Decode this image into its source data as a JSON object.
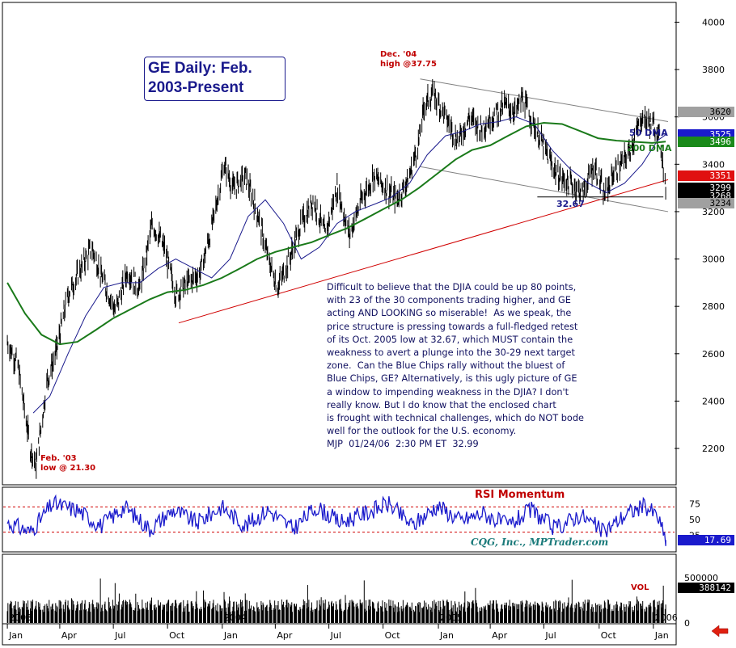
{
  "chart_data": [
    {
      "type": "line",
      "title": "GE Daily: Feb. 2003-Present",
      "ylim": [
        2050,
        4080
      ],
      "yticks": [
        2200,
        2400,
        2600,
        2800,
        3000,
        3200,
        3400,
        3600,
        3800,
        4000
      ],
      "ytick_labels": [
        "2200",
        "2400",
        "2600",
        "2800",
        "3000",
        "3200",
        "3400",
        "3600",
        "3800",
        "4000"
      ],
      "x_labels": [
        "Jan",
        "Apr",
        "Jul",
        "Oct",
        "Jan",
        "Apr",
        "Jul",
        "Oct",
        "Jan",
        "Apr",
        "Jul",
        "Oct",
        "Jan"
      ],
      "year_labels": [
        "2003",
        "2004",
        "2005",
        "2006"
      ],
      "series": [
        {
          "name": "price",
          "color": "#000000",
          "x": [
            "2003-01-02",
            "2003-01-20",
            "2003-02-10",
            "2003-02-20",
            "2003-03-10",
            "2003-03-25",
            "2003-04-15",
            "2003-05-05",
            "2003-05-25",
            "2003-06-15",
            "2003-07-05",
            "2003-07-25",
            "2003-08-15",
            "2003-09-05",
            "2003-09-25",
            "2003-10-15",
            "2003-11-05",
            "2003-11-25",
            "2003-12-15",
            "2004-01-05",
            "2004-01-20",
            "2004-02-10",
            "2004-03-01",
            "2004-03-20",
            "2004-04-05",
            "2004-04-25",
            "2004-05-15",
            "2004-06-05",
            "2004-06-25",
            "2004-07-15",
            "2004-08-05",
            "2004-08-25",
            "2004-09-15",
            "2004-10-05",
            "2004-10-25",
            "2004-11-15",
            "2004-12-01",
            "2004-12-10",
            "2004-12-25",
            "2005-01-15",
            "2005-02-05",
            "2005-02-25",
            "2005-03-15",
            "2005-04-05",
            "2005-04-25",
            "2005-05-15",
            "2005-05-25",
            "2005-06-15",
            "2005-07-05",
            "2005-07-25",
            "2005-08-15",
            "2005-09-05",
            "2005-09-25",
            "2005-10-12",
            "2005-10-25",
            "2005-11-15",
            "2005-12-01",
            "2005-12-15",
            "2006-01-05",
            "2006-01-15",
            "2006-01-24"
          ],
          "y": [
            2650,
            2550,
            2200,
            2130,
            2480,
            2600,
            2850,
            2950,
            3050,
            2900,
            2780,
            2950,
            2870,
            3150,
            3050,
            2850,
            2900,
            2940,
            3130,
            3400,
            3300,
            3350,
            3200,
            3000,
            2880,
            3000,
            3150,
            3250,
            3100,
            3300,
            3100,
            3250,
            3350,
            3300,
            3250,
            3350,
            3500,
            3650,
            3700,
            3600,
            3500,
            3600,
            3550,
            3600,
            3650,
            3620,
            3680,
            3560,
            3450,
            3350,
            3320,
            3280,
            3400,
            3267,
            3350,
            3420,
            3500,
            3600,
            3560,
            3500,
            3299
          ]
        },
        {
          "name": "50 DMA",
          "color": "#1a1a8c",
          "x": [
            "2003-02-15",
            "2003-03-15",
            "2003-04-15",
            "2003-05-15",
            "2003-06-15",
            "2003-07-15",
            "2003-08-15",
            "2003-09-15",
            "2003-10-15",
            "2003-11-15",
            "2003-12-15",
            "2004-01-15",
            "2004-02-15",
            "2004-03-15",
            "2004-04-15",
            "2004-05-15",
            "2004-06-15",
            "2004-07-15",
            "2004-08-15",
            "2004-09-15",
            "2004-10-15",
            "2004-11-15",
            "2004-12-15",
            "2005-01-15",
            "2005-02-15",
            "2005-03-15",
            "2005-04-15",
            "2005-05-15",
            "2005-06-15",
            "2005-07-15",
            "2005-08-15",
            "2005-09-15",
            "2005-10-15",
            "2005-11-15",
            "2005-12-15",
            "2006-01-10",
            "2006-01-24"
          ],
          "y": [
            2350,
            2420,
            2600,
            2760,
            2880,
            2900,
            2900,
            2960,
            3000,
            2960,
            2920,
            3000,
            3180,
            3250,
            3150,
            3000,
            3050,
            3150,
            3200,
            3230,
            3260,
            3320,
            3440,
            3520,
            3540,
            3570,
            3580,
            3600,
            3570,
            3460,
            3380,
            3320,
            3280,
            3320,
            3400,
            3500,
            3525
          ]
        },
        {
          "name": "200 DMA",
          "color": "#1a7a1a",
          "x": [
            "2003-01-02",
            "2003-02-01",
            "2003-03-01",
            "2003-04-01",
            "2003-05-01",
            "2003-06-01",
            "2003-07-01",
            "2003-08-01",
            "2003-09-01",
            "2003-10-01",
            "2003-11-01",
            "2003-12-01",
            "2004-01-01",
            "2004-02-01",
            "2004-03-01",
            "2004-04-01",
            "2004-05-01",
            "2004-06-01",
            "2004-07-01",
            "2004-08-01",
            "2004-09-01",
            "2004-10-01",
            "2004-11-01",
            "2004-12-01",
            "2005-01-01",
            "2005-02-01",
            "2005-03-01",
            "2005-04-01",
            "2005-05-01",
            "2005-06-01",
            "2005-07-01",
            "2005-08-01",
            "2005-09-01",
            "2005-10-01",
            "2005-11-01",
            "2005-12-01",
            "2006-01-01",
            "2006-01-24"
          ],
          "y": [
            2900,
            2770,
            2680,
            2640,
            2650,
            2700,
            2750,
            2790,
            2830,
            2860,
            2870,
            2890,
            2920,
            2960,
            3000,
            3030,
            3050,
            3070,
            3100,
            3130,
            3170,
            3210,
            3250,
            3300,
            3360,
            3420,
            3460,
            3480,
            3520,
            3560,
            3575,
            3570,
            3540,
            3510,
            3500,
            3495,
            3490,
            3496
          ]
        }
      ],
      "trendlines": [
        {
          "name": "rising support",
          "color": "#d00000",
          "x": [
            "2003-10-20",
            "2006-01-28"
          ],
          "y": [
            2730,
            3335
          ]
        },
        {
          "name": "upper channel",
          "color": "#808080",
          "x": [
            "2004-12-03",
            "2006-01-28"
          ],
          "y": [
            3760,
            3580
          ]
        },
        {
          "name": "lower channel",
          "color": "#808080",
          "x": [
            "2004-12-03",
            "2006-01-28"
          ],
          "y": [
            3390,
            3200
          ]
        },
        {
          "name": "Oct 2005 low line",
          "color": "#000000",
          "x": [
            "2005-06-20",
            "2006-01-20"
          ],
          "y": [
            3262,
            3262
          ]
        }
      ],
      "annotations": [
        "Dec. '04",
        "high @37.75",
        "Feb. '03",
        "low @ 21.30",
        "32.67",
        "50 DMA",
        "200 DMA"
      ],
      "right_value_tags": [
        {
          "label": "3620",
          "value": 3620,
          "color": "#a0a0a0",
          "text_color": "#000000"
        },
        {
          "label": "3525",
          "value": 3525,
          "color": "#1a1acc",
          "text_color": "#ffffff"
        },
        {
          "label": "3496",
          "value": 3496,
          "color": "#1a8a1a",
          "text_color": "#ffffff"
        },
        {
          "label": "3351",
          "value": 3351,
          "color": "#e01010",
          "text_color": "#ffffff"
        },
        {
          "label": "3299",
          "value": 3299,
          "color": "#000000",
          "text_color": "#ffffff"
        },
        {
          "label": "3268",
          "value": 3268,
          "color": "#000000",
          "text_color": "#ffffff"
        },
        {
          "label": "3234",
          "value": 3234,
          "color": "#a0a0a0",
          "text_color": "#000000"
        }
      ]
    },
    {
      "type": "line",
      "title": "RSI Momentum",
      "ylim": [
        0,
        100
      ],
      "yticks": [
        25,
        50,
        75
      ],
      "ytick_labels": [
        "25",
        "50",
        "75"
      ],
      "reference_lines": [
        70,
        30
      ],
      "series": [
        {
          "name": "RSI",
          "color": "#1a1acc",
          "x": [
            "2003-01-02",
            "2003-02-10",
            "2003-03-20",
            "2003-05-01",
            "2003-06-10",
            "2003-07-20",
            "2003-09-01",
            "2003-10-10",
            "2003-11-20",
            "2004-01-01",
            "2004-02-10",
            "2004-03-20",
            "2004-05-01",
            "2004-06-10",
            "2004-07-20",
            "2004-09-01",
            "2004-10-10",
            "2004-11-20",
            "2005-01-01",
            "2005-02-10",
            "2005-03-20",
            "2005-05-01",
            "2005-06-10",
            "2005-07-20",
            "2005-09-01",
            "2005-10-10",
            "2005-11-20",
            "2005-12-20",
            "2006-01-10",
            "2006-01-24"
          ],
          "y": [
            45,
            30,
            75,
            65,
            40,
            70,
            35,
            65,
            45,
            70,
            40,
            65,
            35,
            70,
            45,
            60,
            75,
            40,
            72,
            48,
            60,
            40,
            65,
            35,
            58,
            30,
            60,
            72,
            55,
            17.69
          ]
        }
      ],
      "current_value": "17.69",
      "credit": "CQG, Inc., MPTrader.com"
    },
    {
      "type": "bar",
      "title": "VOL",
      "ylim": [
        0,
        750000
      ],
      "yticks": [
        0,
        500000
      ],
      "ytick_labels": [
        "0",
        "500000"
      ],
      "current_value": "388142"
    }
  ],
  "commentary": {
    "lines": [
      "Difficult to believe that the DJIA could be up 80 points,",
      "with 23 of the 30 components trading higher, and GE",
      "acting AND LOOKING so miserable!  As we speak, the",
      "price structure is pressing towards a full-fledged retest",
      "of its Oct. 2005 low at 32.67, which MUST contain the",
      "weakness to avert a plunge into the 30-29 next target",
      "zone.  Can the Blue Chips rally without the bluest of",
      "Blue Chips, GE? Alternatively, is this ugly picture of GE",
      "a window to impending weakness in the DJIA? I don't",
      "really know. But I do know that the enclosed chart",
      "is frought with technical challenges, which do NOT bode",
      "well for the outlook for the U.S. economy.",
      "MJP  01/24/06  2:30 PM ET  32.99"
    ]
  },
  "title_box": {
    "line1": "GE Daily: Feb.",
    "line2": "2003-Present"
  },
  "labels": {
    "dec_high_1": "Dec. '04",
    "dec_high_2": "high @37.75",
    "feb_low_1": "Feb. '03",
    "feb_low_2": "low @ 21.30",
    "oct_low": "32.67",
    "dma50": "50 DMA",
    "dma200": "200 DMA",
    "rsi_title": "RSI Momentum",
    "credit": "CQG, Inc., MPTrader.com",
    "vol": "VOL"
  },
  "colors": {
    "price": "#000000",
    "dma50": "#1a1a8c",
    "dma200": "#1a7a1a",
    "support": "#d00000",
    "channel": "#808080",
    "rsi": "#1a1acc",
    "ref": "#d00000",
    "nav_arrow": "#e02010"
  },
  "nav": {
    "icon": "back-arrow-icon"
  }
}
